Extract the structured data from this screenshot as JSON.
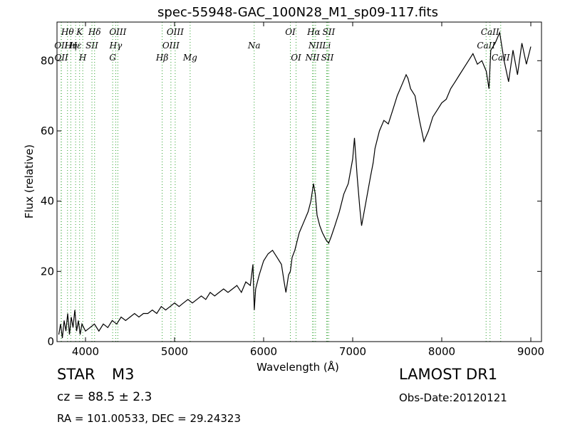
{
  "chart_data": {
    "type": "line",
    "title": "spec-55948-GAC_100N28_M1_sp09-117.fits",
    "xlabel": "Wavelength (Å)",
    "ylabel": "Flux (relative)",
    "xlim": [
      3680,
      9120
    ],
    "ylim": [
      0,
      91
    ],
    "xticks": [
      4000,
      5000,
      6000,
      7000,
      8000,
      9000
    ],
    "yticks": [
      0,
      20,
      40,
      60,
      80
    ],
    "grid": false,
    "series": [
      {
        "color": "#000000",
        "x": [
          3700,
          3720,
          3740,
          3760,
          3780,
          3800,
          3820,
          3840,
          3860,
          3880,
          3900,
          3920,
          3940,
          3960,
          3980,
          4000,
          4050,
          4100,
          4150,
          4200,
          4250,
          4300,
          4350,
          4400,
          4450,
          4500,
          4550,
          4600,
          4650,
          4700,
          4750,
          4800,
          4850,
          4900,
          4950,
          5000,
          5050,
          5100,
          5150,
          5200,
          5250,
          5300,
          5350,
          5400,
          5450,
          5500,
          5550,
          5600,
          5650,
          5700,
          5750,
          5800,
          5850,
          5880,
          5895,
          5910,
          5950,
          6000,
          6050,
          6100,
          6150,
          6200,
          6230,
          6250,
          6280,
          6300,
          6320,
          6350,
          6400,
          6450,
          6500,
          6530,
          6560,
          6580,
          6600,
          6630,
          6660,
          6700,
          6730,
          6760,
          6800,
          6850,
          6900,
          6950,
          7000,
          7020,
          7050,
          7080,
          7100,
          7150,
          7200,
          7230,
          7250,
          7300,
          7350,
          7400,
          7450,
          7500,
          7550,
          7600,
          7620,
          7650,
          7700,
          7750,
          7800,
          7850,
          7900,
          7950,
          8000,
          8050,
          8100,
          8150,
          8200,
          8250,
          8300,
          8350,
          8400,
          8450,
          8500,
          8530,
          8550,
          8600,
          8650,
          8700,
          8750,
          8800,
          8850,
          8900,
          8950,
          9000
        ],
        "y": [
          2,
          5,
          1,
          6,
          3,
          8,
          2,
          7,
          4,
          9,
          3,
          6,
          2,
          5,
          4,
          3,
          4,
          5,
          3,
          5,
          4,
          6,
          5,
          7,
          6,
          7,
          8,
          7,
          8,
          8,
          9,
          8,
          10,
          9,
          10,
          11,
          10,
          11,
          12,
          11,
          12,
          13,
          12,
          14,
          13,
          14,
          15,
          14,
          15,
          16,
          14,
          17,
          16,
          22,
          9,
          15,
          19,
          23,
          25,
          26,
          24,
          22,
          17,
          14,
          19,
          20,
          24,
          26,
          31,
          34,
          37,
          40,
          45,
          42,
          36,
          33,
          31,
          29,
          28,
          30,
          33,
          37,
          42,
          45,
          52,
          58,
          47,
          38,
          33,
          40,
          47,
          51,
          55,
          60,
          63,
          62,
          66,
          70,
          73,
          76,
          75,
          72,
          70,
          63,
          57,
          60,
          64,
          66,
          68,
          69,
          72,
          74,
          76,
          78,
          80,
          82,
          79,
          80,
          77,
          72,
          83,
          85,
          88,
          80,
          74,
          83,
          76,
          85,
          79,
          84
        ]
      }
    ],
    "lines": [
      {
        "name": "OII",
        "wavelength": 3727,
        "row": 2
      },
      {
        "name": "OII",
        "wavelength": 3729,
        "row": 3
      },
      {
        "name": "Hθ",
        "wavelength": 3798,
        "row": 1
      },
      {
        "name": "Hη",
        "wavelength": 3835,
        "row": 2
      },
      {
        "name": "Hε",
        "wavelength": 3889,
        "row": 2
      },
      {
        "name": "K",
        "wavelength": 3934,
        "row": 1
      },
      {
        "name": "H",
        "wavelength": 3969,
        "row": 3
      },
      {
        "name": "SII",
        "wavelength": 4072,
        "row": 2
      },
      {
        "name": "Hδ",
        "wavelength": 4102,
        "row": 1
      },
      {
        "name": "G",
        "wavelength": 4305,
        "row": 3
      },
      {
        "name": "Hγ",
        "wavelength": 4340,
        "row": 2
      },
      {
        "name": "OIII",
        "wavelength": 4363,
        "row": 1
      },
      {
        "name": "Hβ",
        "wavelength": 4861,
        "row": 3
      },
      {
        "name": "OIII",
        "wavelength": 4959,
        "row": 2
      },
      {
        "name": "OIII",
        "wavelength": 5007,
        "row": 1
      },
      {
        "name": "Mg",
        "wavelength": 5175,
        "row": 3
      },
      {
        "name": "Na",
        "wavelength": 5894,
        "row": 2
      },
      {
        "name": "OI",
        "wavelength": 6300,
        "row": 1
      },
      {
        "name": "OI",
        "wavelength": 6364,
        "row": 3
      },
      {
        "name": "NII",
        "wavelength": 6548,
        "row": 3
      },
      {
        "name": "Hα",
        "wavelength": 6563,
        "row": 1
      },
      {
        "name": "NII",
        "wavelength": 6583,
        "row": 2
      },
      {
        "name": "Li",
        "wavelength": 6707,
        "row": 2
      },
      {
        "name": "SII",
        "wavelength": 6716,
        "row": 3
      },
      {
        "name": "SII",
        "wavelength": 6731,
        "row": 1
      },
      {
        "name": "CaII",
        "wavelength": 8498,
        "row": 2
      },
      {
        "name": "CaII",
        "wavelength": 8542,
        "row": 1
      },
      {
        "name": "CaII",
        "wavelength": 8662,
        "row": 3
      }
    ],
    "line_color": "#2ca02c"
  },
  "info": {
    "class_label": "STAR",
    "subclass": "M3",
    "survey": "LAMOST DR1",
    "cz": "cz = 88.5 ± 2.3",
    "obs_date": "Obs-Date:20120121",
    "coords": "RA = 101.00533, DEC = 29.24323"
  }
}
